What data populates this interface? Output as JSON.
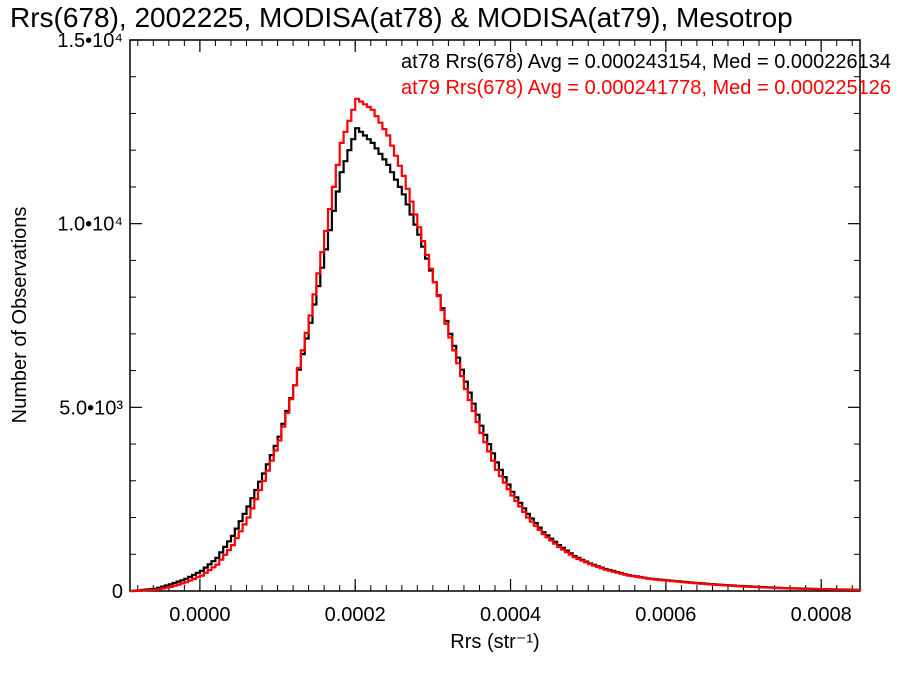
{
  "chart_data": {
    "type": "line",
    "title": "Rrs(678), 2002225, MODISA(at78) & MODISA(at79), Mesotrop",
    "xlabel": "Rrs (str⁻¹)",
    "ylabel": "Number of Observations",
    "xlim": [
      -9e-05,
      0.00085
    ],
    "ylim": [
      0,
      15000
    ],
    "x_ticks": [
      {
        "value": 0.0,
        "label": "0.0000"
      },
      {
        "value": 0.0002,
        "label": "0.0002"
      },
      {
        "value": 0.0004,
        "label": "0.0004"
      },
      {
        "value": 0.0006,
        "label": "0.0006"
      },
      {
        "value": 0.0008,
        "label": "0.0008"
      }
    ],
    "y_ticks": [
      {
        "value": 0,
        "label": "0"
      },
      {
        "value": 5000,
        "label": "5.0•10³"
      },
      {
        "value": 10000,
        "label": "1.0•10⁴"
      },
      {
        "value": 15000,
        "label": "1.5•10⁴"
      }
    ],
    "grid": false,
    "legend_position": "top-right",
    "series": [
      {
        "name": "at78 Rrs(678) Avg = 0.000243154, Med = 0.000226134",
        "color": "#000000",
        "points": [
          [
            -9e-05,
            0
          ],
          [
            -6e-05,
            60
          ],
          [
            -4e-05,
            180
          ],
          [
            -2e-05,
            330
          ],
          [
            0.0,
            550
          ],
          [
            2e-05,
            900
          ],
          [
            4e-05,
            1500
          ],
          [
            6e-05,
            2300
          ],
          [
            8e-05,
            3200
          ],
          [
            0.0001,
            4200
          ],
          [
            0.00012,
            5600
          ],
          [
            0.00014,
            7300
          ],
          [
            0.00016,
            9300
          ],
          [
            0.00018,
            11400
          ],
          [
            0.0002,
            12600
          ],
          [
            0.00022,
            12200
          ],
          [
            0.00024,
            11600
          ],
          [
            0.00026,
            10800
          ],
          [
            0.00028,
            9700
          ],
          [
            0.0003,
            8400
          ],
          [
            0.00032,
            7000
          ],
          [
            0.00034,
            5700
          ],
          [
            0.00036,
            4500
          ],
          [
            0.00038,
            3500
          ],
          [
            0.0004,
            2700
          ],
          [
            0.00042,
            2100
          ],
          [
            0.00044,
            1600
          ],
          [
            0.00046,
            1250
          ],
          [
            0.00048,
            950
          ],
          [
            0.0005,
            750
          ],
          [
            0.00052,
            600
          ],
          [
            0.00055,
            430
          ],
          [
            0.00058,
            330
          ],
          [
            0.00062,
            250
          ],
          [
            0.00066,
            180
          ],
          [
            0.0007,
            130
          ],
          [
            0.00075,
            80
          ],
          [
            0.0008,
            50
          ],
          [
            0.00085,
            30
          ]
        ]
      },
      {
        "name": "at79 Rrs(678) Avg = 0.000241778, Med = 0.000225126",
        "color": "#ff0000",
        "points": [
          [
            -9e-05,
            0
          ],
          [
            -6e-05,
            30
          ],
          [
            -4e-05,
            110
          ],
          [
            -2e-05,
            240
          ],
          [
            0.0,
            420
          ],
          [
            2e-05,
            720
          ],
          [
            4e-05,
            1250
          ],
          [
            6e-05,
            2000
          ],
          [
            8e-05,
            3000
          ],
          [
            0.0001,
            4100
          ],
          [
            0.00012,
            5600
          ],
          [
            0.00014,
            7500
          ],
          [
            0.00016,
            9800
          ],
          [
            0.00018,
            12200
          ],
          [
            0.0002,
            13400
          ],
          [
            0.00022,
            13100
          ],
          [
            0.00024,
            12400
          ],
          [
            0.00026,
            11300
          ],
          [
            0.00028,
            9900
          ],
          [
            0.0003,
            8400
          ],
          [
            0.00032,
            6900
          ],
          [
            0.00034,
            5500
          ],
          [
            0.00036,
            4300
          ],
          [
            0.00038,
            3300
          ],
          [
            0.0004,
            2600
          ],
          [
            0.00042,
            2000
          ],
          [
            0.00044,
            1550
          ],
          [
            0.00046,
            1200
          ],
          [
            0.00048,
            920
          ],
          [
            0.0005,
            730
          ],
          [
            0.00052,
            580
          ],
          [
            0.00055,
            420
          ],
          [
            0.00058,
            320
          ],
          [
            0.00062,
            240
          ],
          [
            0.00066,
            170
          ],
          [
            0.0007,
            120
          ],
          [
            0.00075,
            75
          ],
          [
            0.0008,
            45
          ],
          [
            0.00085,
            25
          ]
        ]
      }
    ]
  }
}
